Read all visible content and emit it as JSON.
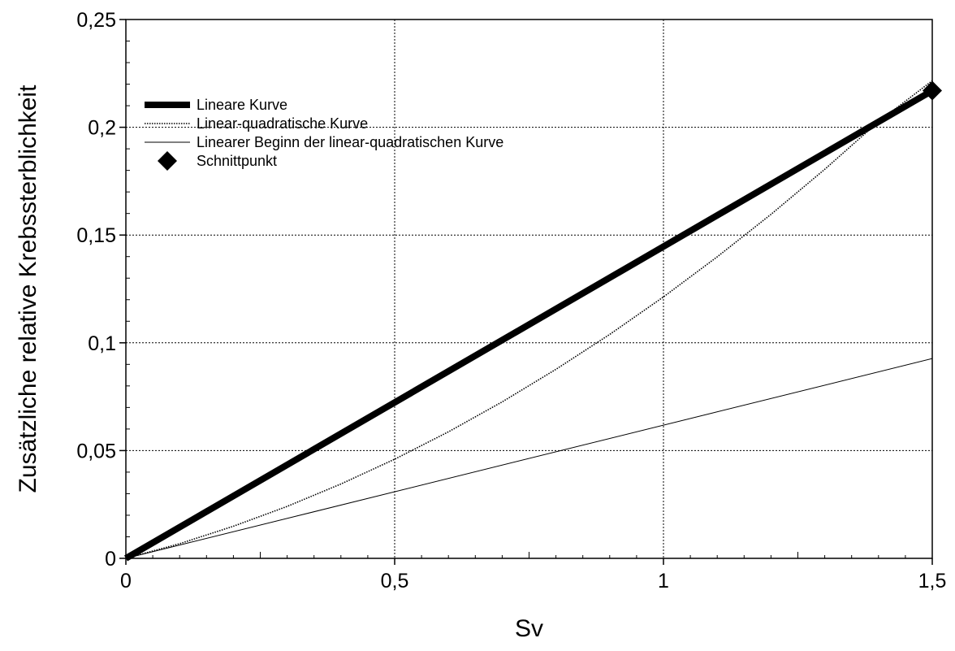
{
  "chart_data": {
    "type": "line",
    "title": "",
    "xlabel": "Sv",
    "ylabel": "Zusätzliche relative Krebssterblichkeit",
    "xlim": [
      0,
      1.5
    ],
    "ylim": [
      0,
      0.25
    ],
    "x_ticks": [
      0,
      0.5,
      1,
      1.5
    ],
    "x_tick_labels": [
      "0",
      "0,5",
      "1",
      "1,5"
    ],
    "y_ticks": [
      0,
      0.05,
      0.1,
      0.15,
      0.2,
      0.25
    ],
    "y_tick_labels": [
      "0",
      "0,05",
      "0,1",
      "0,15",
      "0,2",
      "0,25"
    ],
    "grid": true,
    "legend_position": "top-left",
    "series": [
      {
        "name": "Lineare Kurve",
        "style": "thick-solid",
        "x": [
          0,
          1.5
        ],
        "y": [
          0,
          0.217
        ]
      },
      {
        "name": "Linear-quadratische Kurve",
        "style": "dotted",
        "x": [
          0,
          0.1,
          0.2,
          0.3,
          0.4,
          0.5,
          0.6,
          0.7,
          0.8,
          0.9,
          1.0,
          1.1,
          1.2,
          1.3,
          1.4,
          1.5
        ],
        "y": [
          0,
          0.0068,
          0.0149,
          0.0241,
          0.0345,
          0.046,
          0.0587,
          0.0726,
          0.0877,
          0.1039,
          0.1213,
          0.1399,
          0.1596,
          0.1805,
          0.2026,
          0.2216
        ]
      },
      {
        "name": "Linearer Beginn der linear-quadratischen Kurve",
        "style": "thin-solid",
        "x": [
          0,
          1.5
        ],
        "y": [
          0,
          0.0927
        ]
      },
      {
        "name": "Schnittpunkt",
        "style": "diamond-marker",
        "x": [
          1.5
        ],
        "y": [
          0.217
        ]
      }
    ]
  }
}
